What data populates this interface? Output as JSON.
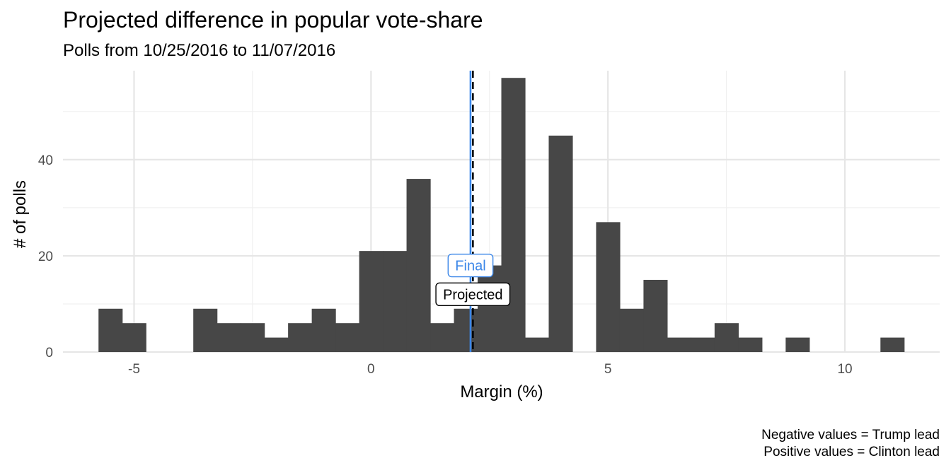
{
  "chart_data": {
    "type": "bar",
    "title": "Projected difference in popular vote-share",
    "subtitle": "Polls from 10/25/2016 to 11/07/2016",
    "xlabel": "Margin (%)",
    "ylabel": "# of polls",
    "caption": [
      "Negative values = Trump lead",
      "Positive values = Clinton lead"
    ],
    "xlim": [
      -6.5,
      12.0
    ],
    "ylim": [
      0,
      58.5
    ],
    "x_ticks": [
      -5,
      0,
      5,
      10
    ],
    "y_ticks": [
      0,
      20,
      40
    ],
    "grid": true,
    "bin_width": 0.5,
    "bins": [
      {
        "x0": -5.75,
        "x1": -5.25,
        "count": 9
      },
      {
        "x0": -5.25,
        "x1": -4.75,
        "count": 6
      },
      {
        "x0": -3.75,
        "x1": -3.25,
        "count": 9
      },
      {
        "x0": -3.25,
        "x1": -2.75,
        "count": 6
      },
      {
        "x0": -2.75,
        "x1": -2.25,
        "count": 6
      },
      {
        "x0": -2.25,
        "x1": -1.75,
        "count": 3
      },
      {
        "x0": -1.75,
        "x1": -1.25,
        "count": 6
      },
      {
        "x0": -1.25,
        "x1": -0.75,
        "count": 9
      },
      {
        "x0": -0.75,
        "x1": -0.25,
        "count": 6
      },
      {
        "x0": -0.25,
        "x1": 0.25,
        "count": 21
      },
      {
        "x0": 0.25,
        "x1": 0.75,
        "count": 21
      },
      {
        "x0": 0.75,
        "x1": 1.25,
        "count": 36
      },
      {
        "x0": 1.25,
        "x1": 1.75,
        "count": 6
      },
      {
        "x0": 1.75,
        "x1": 2.25,
        "count": 9
      },
      {
        "x0": 2.25,
        "x1": 2.75,
        "count": 18
      },
      {
        "x0": 2.75,
        "x1": 3.25,
        "count": 57
      },
      {
        "x0": 3.25,
        "x1": 3.75,
        "count": 3
      },
      {
        "x0": 3.75,
        "x1": 4.25,
        "count": 45
      },
      {
        "x0": 4.75,
        "x1": 5.25,
        "count": 27
      },
      {
        "x0": 5.25,
        "x1": 5.75,
        "count": 9
      },
      {
        "x0": 5.75,
        "x1": 6.25,
        "count": 15
      },
      {
        "x0": 6.25,
        "x1": 6.75,
        "count": 3
      },
      {
        "x0": 6.75,
        "x1": 7.25,
        "count": 3
      },
      {
        "x0": 7.25,
        "x1": 7.75,
        "count": 6
      },
      {
        "x0": 7.75,
        "x1": 8.25,
        "count": 3
      },
      {
        "x0": 8.75,
        "x1": 9.25,
        "count": 3
      },
      {
        "x0": 10.75,
        "x1": 11.25,
        "count": 3
      }
    ],
    "bar_color": "#474747",
    "reference_lines": [
      {
        "name": "Final",
        "x": 2.1,
        "color": "#3a86e8",
        "style": "solid",
        "label_y": 18
      },
      {
        "name": "Projected",
        "x": 2.15,
        "color": "#000000",
        "style": "dashed",
        "label_y": 12
      }
    ]
  }
}
